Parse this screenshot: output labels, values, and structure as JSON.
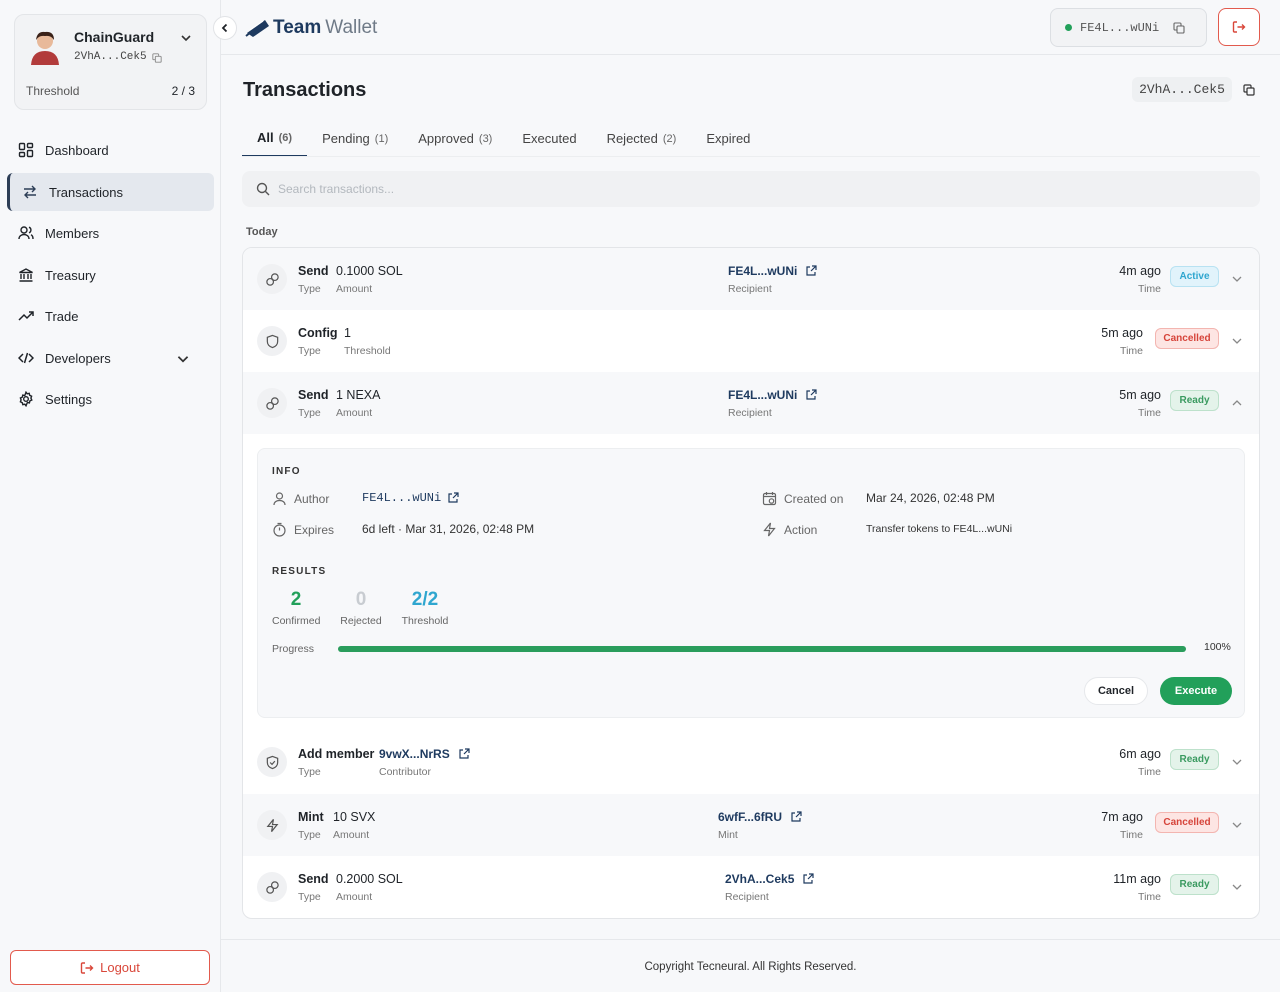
{
  "profile": {
    "name": "ChainGuard",
    "address": "2VhA...Cek5",
    "threshold_label": "Threshold",
    "threshold_value": "2 / 3"
  },
  "sidebar": {
    "items": [
      {
        "label": "Dashboard",
        "icon": "grid-icon"
      },
      {
        "label": "Transactions",
        "icon": "arrows-icon",
        "active": true
      },
      {
        "label": "Members",
        "icon": "users-icon"
      },
      {
        "label": "Treasury",
        "icon": "bank-icon"
      },
      {
        "label": "Trade",
        "icon": "trend-icon"
      },
      {
        "label": "Developers",
        "icon": "code-icon"
      },
      {
        "label": "Settings",
        "icon": "gear-icon"
      }
    ],
    "logout_label": "Logout"
  },
  "header": {
    "brand_bold": "Team",
    "brand_light": "Wallet",
    "wallet_address": "FE4L...wUNi"
  },
  "main": {
    "title": "Transactions",
    "vault_address": "2VhA...Cek5",
    "tabs": [
      {
        "label": "All",
        "count": "(6)",
        "active": true
      },
      {
        "label": "Pending",
        "count": "(1)"
      },
      {
        "label": "Approved",
        "count": "(3)"
      },
      {
        "label": "Executed",
        "count": ""
      },
      {
        "label": "Rejected",
        "count": "(2)"
      },
      {
        "label": "Expired",
        "count": ""
      }
    ],
    "search_placeholder": "Search transactions...",
    "group_label": "Today"
  },
  "transactions": [
    {
      "type": "Send",
      "type_label": "Type",
      "detail": "0.1000 SOL",
      "detail_label": "Amount",
      "address": "FE4L...wUNi",
      "address_label": "Recipient",
      "time": "4m ago",
      "time_label": "Time",
      "status": "Active"
    },
    {
      "type": "Config",
      "type_label": "Type",
      "detail": "1",
      "detail_label": "Threshold",
      "time": "5m ago",
      "time_label": "Time",
      "status": "Cancelled"
    },
    {
      "type": "Send",
      "type_label": "Type",
      "detail": "1 NEXA",
      "detail_label": "Amount",
      "address": "FE4L...wUNi",
      "address_label": "Recipient",
      "time": "5m ago",
      "time_label": "Time",
      "status": "Ready"
    },
    {
      "type": "Add member",
      "type_label": "Type",
      "detail": "9vwX...NrRS",
      "detail_label": "Contributor",
      "time": "6m ago",
      "time_label": "Time",
      "status": "Ready"
    },
    {
      "type": "Mint",
      "type_label": "Type",
      "detail": "10 SVX",
      "detail_label": "Amount",
      "address": "6wfF...6fRU",
      "address_label": "Mint",
      "time": "7m ago",
      "time_label": "Time",
      "status": "Cancelled"
    },
    {
      "type": "Send",
      "type_label": "Type",
      "detail": "0.2000 SOL",
      "detail_label": "Amount",
      "address": "2VhA...Cek5",
      "address_label": "Recipient",
      "time": "11m ago",
      "time_label": "Time",
      "status": "Ready"
    }
  ],
  "details": {
    "info_title": "INFO",
    "author_label": "Author",
    "author_value": "FE4L...wUNi",
    "created_label": "Created on",
    "created_value": "Mar 24, 2026, 02:48 PM",
    "expires_label": "Expires",
    "expires_value": "6d left · Mar 31, 2026, 02:48 PM",
    "action_label": "Action",
    "action_value": "Transfer tokens to FE4L...wUNi",
    "results_title": "RESULTS",
    "confirmed_count": "2",
    "confirmed_label": "Confirmed",
    "rejected_count": "0",
    "rejected_label": "Rejected",
    "threshold_count": "2/2",
    "threshold_label": "Threshold",
    "progress_label": "Progress",
    "progress_percent": 100,
    "progress_text": "100%",
    "cancel_label": "Cancel",
    "execute_label": "Execute"
  },
  "colors": {
    "brand": "#1e3a5f",
    "success": "#22a05a",
    "danger": "#d9473a",
    "info": "#2fa6cf"
  },
  "footer": {
    "text": "Copyright Tecneural. All Rights Reserved."
  }
}
